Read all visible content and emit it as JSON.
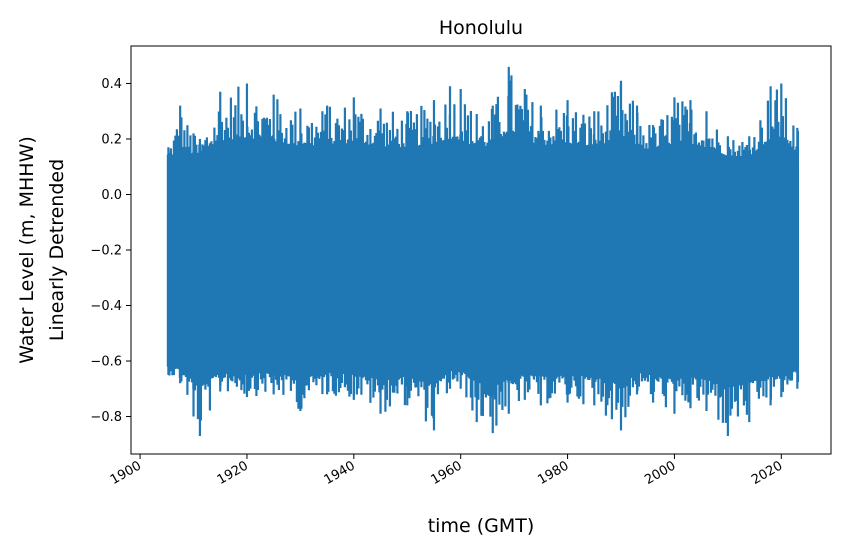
{
  "chart_data": {
    "type": "line",
    "title": "Honolulu",
    "xlabel": "time (GMT)",
    "ylabel_lines": [
      "Water Level (m, MHHW)",
      "Linearly Detrended"
    ],
    "xlim": [
      1898.3,
      2029.3
    ],
    "ylim": [
      -0.935,
      0.535
    ],
    "x_ticks": [
      {
        "value": 1900,
        "label": "1900"
      },
      {
        "value": 1920,
        "label": "1920"
      },
      {
        "value": 1940,
        "label": "1940"
      },
      {
        "value": 1960,
        "label": "1960"
      },
      {
        "value": 1980,
        "label": "1980"
      },
      {
        "value": 2000,
        "label": "2000"
      },
      {
        "value": 2020,
        "label": "2020"
      }
    ],
    "y_ticks": [
      {
        "value": 0.4,
        "label": "0.4"
      },
      {
        "value": 0.2,
        "label": "0.2"
      },
      {
        "value": 0.0,
        "label": "0.0"
      },
      {
        "value": -0.2,
        "label": "−0.2"
      },
      {
        "value": -0.4,
        "label": "−0.4"
      },
      {
        "value": -0.6,
        "label": "−0.6"
      },
      {
        "value": -0.8,
        "label": "−0.8"
      }
    ],
    "series": [
      {
        "color": "#1f77b4",
        "x_range": [
          1905.2,
          2023.2
        ],
        "band": {
          "upper": 0.1,
          "lower": -0.6
        },
        "envelope_points": [
          {
            "x": 1905.3,
            "max": 0.17,
            "min": -0.65
          },
          {
            "x": 1907.5,
            "max": 0.32,
            "min": -0.68
          },
          {
            "x": 1910.0,
            "max": 0.22,
            "min": -0.8
          },
          {
            "x": 1911.2,
            "max": 0.2,
            "min": -0.87
          },
          {
            "x": 1915.0,
            "max": 0.37,
            "min": -0.71
          },
          {
            "x": 1920.0,
            "max": 0.4,
            "min": -0.73
          },
          {
            "x": 1925.0,
            "max": 0.36,
            "min": -0.72
          },
          {
            "x": 1930.0,
            "max": 0.31,
            "min": -0.78
          },
          {
            "x": 1935.0,
            "max": 0.32,
            "min": -0.72
          },
          {
            "x": 1940.0,
            "max": 0.35,
            "min": -0.74
          },
          {
            "x": 1945.0,
            "max": 0.31,
            "min": -0.79
          },
          {
            "x": 1950.0,
            "max": 0.3,
            "min": -0.76
          },
          {
            "x": 1955.0,
            "max": 0.34,
            "min": -0.85
          },
          {
            "x": 1958.0,
            "max": 0.39,
            "min": -0.7
          },
          {
            "x": 1960.0,
            "max": 0.38,
            "min": -0.7
          },
          {
            "x": 1963.0,
            "max": 0.29,
            "min": -0.82
          },
          {
            "x": 1966.0,
            "max": 0.32,
            "min": -0.86
          },
          {
            "x": 1969.0,
            "max": 0.46,
            "min": -0.79
          },
          {
            "x": 1972.0,
            "max": 0.38,
            "min": -0.74
          },
          {
            "x": 1975.0,
            "max": 0.32,
            "min": -0.76
          },
          {
            "x": 1980.0,
            "max": 0.34,
            "min": -0.75
          },
          {
            "x": 1985.0,
            "max": 0.3,
            "min": -0.76
          },
          {
            "x": 1990.0,
            "max": 0.41,
            "min": -0.85
          },
          {
            "x": 1993.0,
            "max": 0.32,
            "min": -0.72
          },
          {
            "x": 1996.0,
            "max": 0.25,
            "min": -0.75
          },
          {
            "x": 2000.0,
            "max": 0.35,
            "min": -0.79
          },
          {
            "x": 2003.0,
            "max": 0.34,
            "min": -0.77
          },
          {
            "x": 2006.0,
            "max": 0.3,
            "min": -0.78
          },
          {
            "x": 2010.0,
            "max": 0.21,
            "min": -0.87
          },
          {
            "x": 2014.0,
            "max": 0.21,
            "min": -0.82
          },
          {
            "x": 2018.0,
            "max": 0.39,
            "min": -0.76
          },
          {
            "x": 2020.0,
            "max": 0.4,
            "min": -0.73
          },
          {
            "x": 2023.0,
            "max": 0.24,
            "min": -0.7
          }
        ]
      }
    ],
    "grid": false,
    "legend": false
  }
}
